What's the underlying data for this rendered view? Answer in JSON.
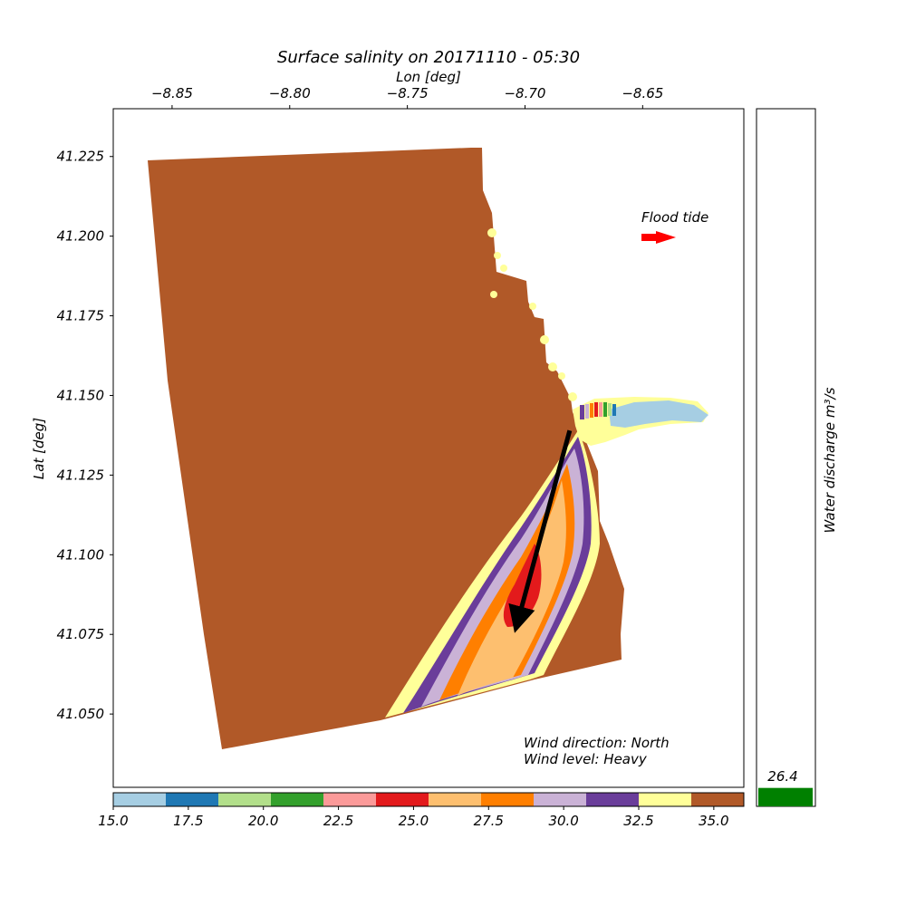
{
  "chart_data": {
    "type": "heatmap",
    "title": "Surface salinity on 20171110 - 05:30",
    "xlabel": "Lon [deg]",
    "ylabel": "Lat [deg]",
    "xlim": [
      -8.875,
      -8.607
    ],
    "ylim": [
      41.027,
      41.24
    ],
    "xticks": [
      -8.85,
      -8.8,
      -8.75,
      -8.7,
      -8.65
    ],
    "xtick_labels": [
      "−8.85",
      "−8.80",
      "−8.75",
      "−8.70",
      "−8.65"
    ],
    "yticks": [
      41.05,
      41.075,
      41.1,
      41.125,
      41.15,
      41.175,
      41.2,
      41.225
    ],
    "ytick_labels": [
      "41.050",
      "41.075",
      "41.100",
      "41.125",
      "41.150",
      "41.175",
      "41.200",
      "41.225"
    ],
    "x_axis_position": "top",
    "grid": false,
    "colorbar": {
      "orientation": "horizontal",
      "range": [
        15,
        36
      ],
      "colors": [
        "#a6cee3",
        "#1f78b4",
        "#b2df8a",
        "#33a02c",
        "#fb9a99",
        "#e31a1c",
        "#fdbf6f",
        "#ff7f00",
        "#cab2d6",
        "#6a3d9a",
        "#ffff99",
        "#b15928"
      ],
      "ticks": [
        15,
        17.5,
        20,
        22.5,
        25,
        27.5,
        30,
        32.5,
        35
      ],
      "tick_labels": [
        "15.0",
        "17.5",
        "20.0",
        "22.5",
        "25.0",
        "27.5",
        "30.0",
        "32.5",
        "35.0"
      ]
    },
    "annotations": {
      "tide_label": "Flood tide",
      "tide_arrow_color": "#ff0000",
      "wind_direction_text": "Wind direction: North",
      "wind_level_text": "Wind level: Heavy",
      "wind_arrow": {
        "from": [
          -8.681,
          41.139
        ],
        "to": [
          -8.702,
          41.082
        ]
      }
    },
    "discharge": {
      "label": "Water discharge m³/s",
      "value": 26.4,
      "value_label": "26.4",
      "bar_color": "#008000",
      "ylim": [
        0,
        1000
      ]
    }
  }
}
